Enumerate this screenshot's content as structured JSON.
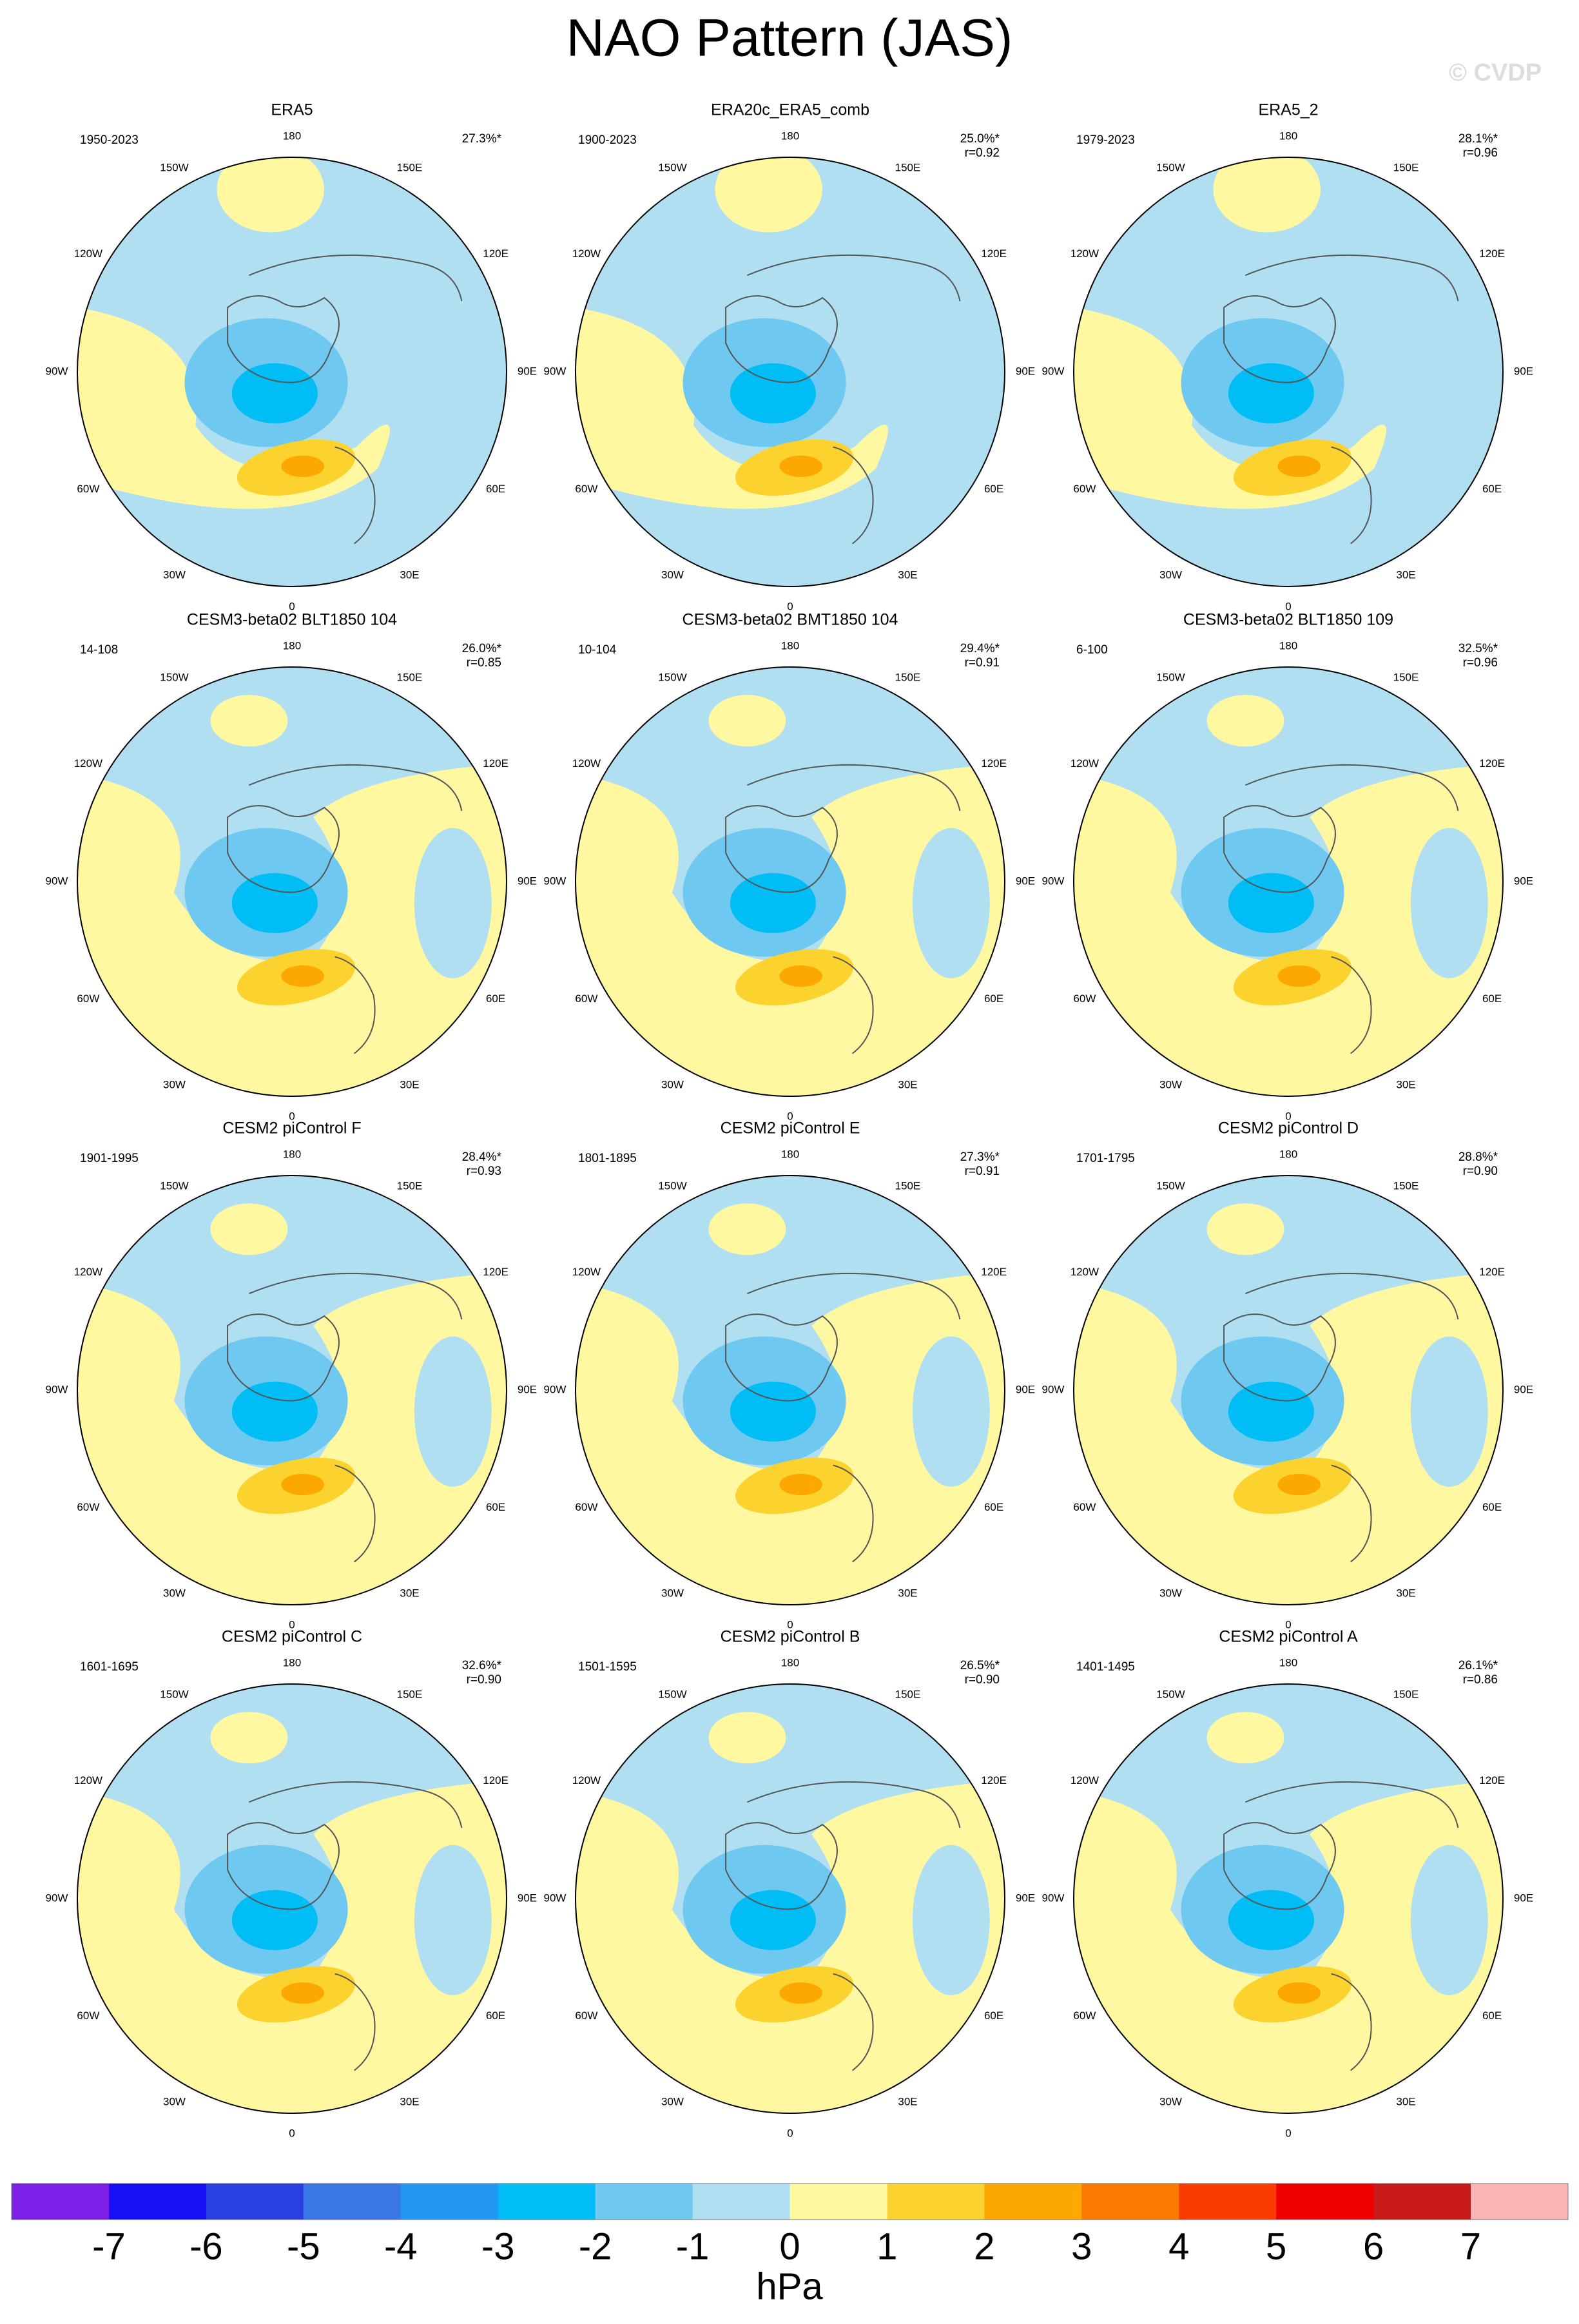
{
  "title": "NAO Pattern (JAS)",
  "watermark": "© CVDP",
  "lon_labels": [
    "0",
    "30E",
    "60E",
    "90E",
    "120E",
    "150E",
    "180",
    "150W",
    "120W",
    "90W",
    "60W",
    "30W"
  ],
  "panels": [
    {
      "title": "ERA5",
      "period": "1950-2023",
      "pct": "27.3%*"
    },
    {
      "title": "ERA20c_ERA5_comb",
      "period": "1900-2023",
      "pct": "25.0%*",
      "r": "r=0.92"
    },
    {
      "title": "ERA5_2",
      "period": "1979-2023",
      "pct": "28.1%*",
      "r": "r=0.96"
    },
    {
      "title": "CESM3-beta02 BLT1850 104",
      "period": "14-108",
      "pct": "26.0%*",
      "r": "r=0.85"
    },
    {
      "title": "CESM3-beta02 BMT1850 104",
      "period": "10-104",
      "pct": "29.4%*",
      "r": "r=0.91"
    },
    {
      "title": "CESM3-beta02 BLT1850 109",
      "period": "6-100",
      "pct": "32.5%*",
      "r": "r=0.96"
    },
    {
      "title": "CESM2 piControl F",
      "period": "1901-1995",
      "pct": "28.4%*",
      "r": "r=0.93"
    },
    {
      "title": "CESM2 piControl E",
      "period": "1801-1895",
      "pct": "27.3%*",
      "r": "r=0.91"
    },
    {
      "title": "CESM2 piControl D",
      "period": "1701-1795",
      "pct": "28.8%*",
      "r": "r=0.90"
    },
    {
      "title": "CESM2 piControl C",
      "period": "1601-1695",
      "pct": "32.6%*",
      "r": "r=0.90"
    },
    {
      "title": "CESM2 piControl B",
      "period": "1501-1595",
      "pct": "26.5%*",
      "r": "r=0.90"
    },
    {
      "title": "CESM2 piControl A",
      "period": "1401-1495",
      "pct": "26.1%*",
      "r": "r=0.86"
    }
  ],
  "colorbar": {
    "colors": [
      "#7f20e8",
      "#1a10f5",
      "#2a40e0",
      "#3a78e8",
      "#2296f3",
      "#00bdf5",
      "#6ec8f0",
      "#b0dff2",
      "#fff8a0",
      "#fbd22e",
      "#fca800",
      "#fb7a00",
      "#fb3b00",
      "#f00000",
      "#c91a1a",
      "#fab4b4"
    ],
    "levels": [
      -7,
      -6,
      -5,
      -4,
      -3,
      -2,
      -1,
      0,
      1,
      2,
      3,
      4,
      5,
      6,
      7
    ],
    "unit": "hPa"
  }
}
